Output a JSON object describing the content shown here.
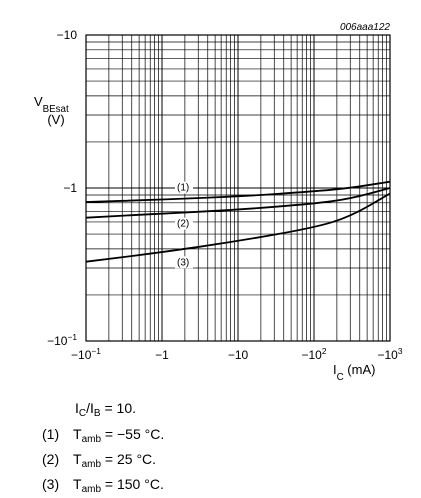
{
  "chart_data": {
    "type": "line",
    "id_label": "006aaa122",
    "x_scale": "log",
    "y_scale": "log",
    "xlim": [
      -0.1,
      -1000
    ],
    "ylim": [
      -0.1,
      -10
    ],
    "x_ticks": [
      "−10⁻¹",
      "−1",
      "−10",
      "−10²",
      "−10³"
    ],
    "y_ticks": [
      "−10",
      "−1",
      "−10⁻¹"
    ],
    "y_axis": {
      "symbol": "V",
      "subscript": "BEsat",
      "unit": "(V)"
    },
    "x_axis": {
      "symbol": "I",
      "subscript": "C",
      "unit": "(mA)"
    },
    "series": [
      {
        "name": "(1)",
        "x": [
          -0.1,
          -1,
          -10,
          -100,
          -300,
          -1000
        ],
        "y": [
          -0.81,
          -0.84,
          -0.88,
          -0.95,
          -1.0,
          -1.1
        ]
      },
      {
        "name": "(2)",
        "x": [
          -0.1,
          -1,
          -10,
          -100,
          -300,
          -1000
        ],
        "y": [
          -0.64,
          -0.68,
          -0.72,
          -0.79,
          -0.85,
          -1.0
        ]
      },
      {
        "name": "(3)",
        "x": [
          -0.1,
          -1,
          -10,
          -100,
          -300,
          -1000
        ],
        "y": [
          -0.33,
          -0.38,
          -0.45,
          -0.55,
          -0.65,
          -0.92
        ]
      }
    ]
  },
  "captions": {
    "ratio": {
      "s1": "I",
      "sub1": "C",
      "s2": "/I",
      "sub2": "B",
      "s3": " = 10."
    },
    "items": [
      {
        "num": "(1)",
        "sym": "T",
        "sub": "amb",
        "val": " = −55 °C."
      },
      {
        "num": "(2)",
        "sym": "T",
        "sub": "amb",
        "val": " = 25 °C."
      },
      {
        "num": "(3)",
        "sym": "T",
        "sub": "amb",
        "val": " = 150 °C."
      }
    ]
  }
}
